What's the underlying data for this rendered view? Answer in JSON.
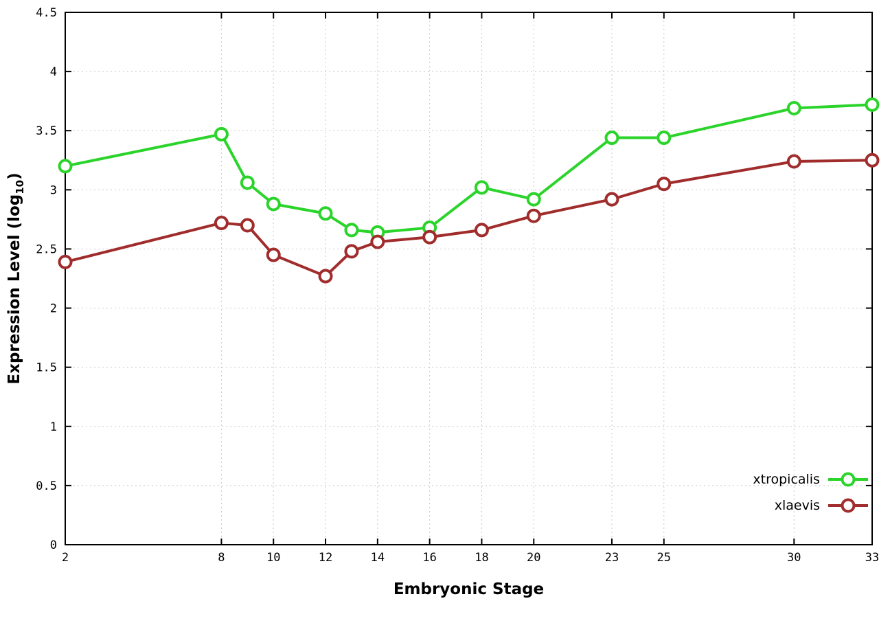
{
  "chart_data": {
    "type": "line",
    "title": "",
    "xlabel": "Embryonic Stage",
    "ylabel": "Expression Level (log10)",
    "ylabel_parts": {
      "main": "Expression Level (log",
      "sub": "10",
      "end": ")"
    },
    "xlim": [
      2,
      33
    ],
    "ylim": [
      0,
      4.5
    ],
    "x_ticks": [
      2,
      8,
      10,
      12,
      14,
      16,
      18,
      20,
      23,
      25,
      30,
      33
    ],
    "x_tick_labels": [
      "2",
      "8",
      "10",
      "12",
      "14",
      "16",
      "18",
      "20",
      "23",
      "25",
      "30",
      "33"
    ],
    "y_ticks": [
      0,
      0.5,
      1,
      1.5,
      2,
      2.5,
      3,
      3.5,
      4,
      4.5
    ],
    "y_tick_labels": [
      "0",
      "0.5",
      "1",
      "1.5",
      "2",
      "2.5",
      "3",
      "3.5",
      "4",
      "4.5"
    ],
    "grid": true,
    "legend_position": "bottom-right",
    "marker": "open-circle",
    "x": [
      2,
      8,
      9,
      10,
      12,
      13,
      14,
      16,
      18,
      20,
      23,
      25,
      30,
      33
    ],
    "series": [
      {
        "name": "xtropicalis",
        "color": "#2bd42b",
        "values": [
          3.2,
          3.47,
          3.06,
          2.88,
          2.8,
          2.66,
          2.64,
          2.68,
          3.02,
          2.92,
          3.44,
          3.44,
          3.69,
          3.72
        ]
      },
      {
        "name": "xlaevis",
        "color": "#a02c2c",
        "values": [
          2.39,
          2.72,
          2.7,
          2.45,
          2.27,
          2.48,
          2.56,
          2.6,
          2.66,
          2.78,
          2.92,
          3.05,
          3.24,
          3.25
        ]
      }
    ]
  },
  "colors": {
    "background": "#ffffff",
    "grid": "#c8c8c8",
    "axis": "#000000",
    "text": "#000000"
  }
}
